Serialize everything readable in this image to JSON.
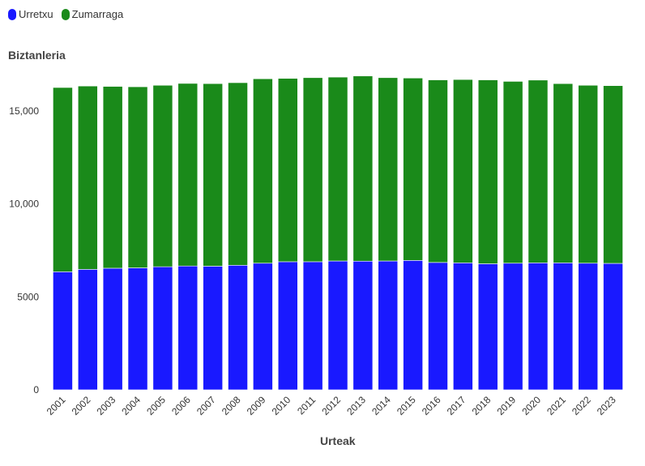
{
  "chart_data": {
    "type": "bar",
    "stacked": true,
    "title": "",
    "xlabel": "Urteak",
    "ylabel": "Biztanleria",
    "ylim": [
      0,
      17000
    ],
    "yticks": [
      0,
      5000,
      10000,
      15000
    ],
    "ytick_labels": [
      "0",
      "5000",
      "10,000",
      "15,000"
    ],
    "grid": false,
    "legend_position": "top-left",
    "categories": [
      "2001",
      "2002",
      "2003",
      "2004",
      "2005",
      "2006",
      "2007",
      "2008",
      "2009",
      "2010",
      "2011",
      "2012",
      "2013",
      "2014",
      "2015",
      "2016",
      "2017",
      "2018",
      "2019",
      "2020",
      "2021",
      "2022",
      "2023"
    ],
    "series": [
      {
        "name": "Urretxu",
        "color": "#1919ff",
        "values": [
          6350,
          6480,
          6540,
          6560,
          6620,
          6660,
          6650,
          6700,
          6810,
          6890,
          6890,
          6930,
          6920,
          6930,
          6960,
          6850,
          6830,
          6780,
          6810,
          6830,
          6830,
          6810,
          6800
        ]
      },
      {
        "name": "Zumarraga",
        "color": "#1a8a1a",
        "values": [
          9910,
          9860,
          9780,
          9740,
          9760,
          9820,
          9820,
          9820,
          9920,
          9860,
          9900,
          9890,
          9960,
          9860,
          9810,
          9820,
          9860,
          9890,
          9780,
          9830,
          9640,
          9570,
          9560
        ]
      }
    ]
  }
}
